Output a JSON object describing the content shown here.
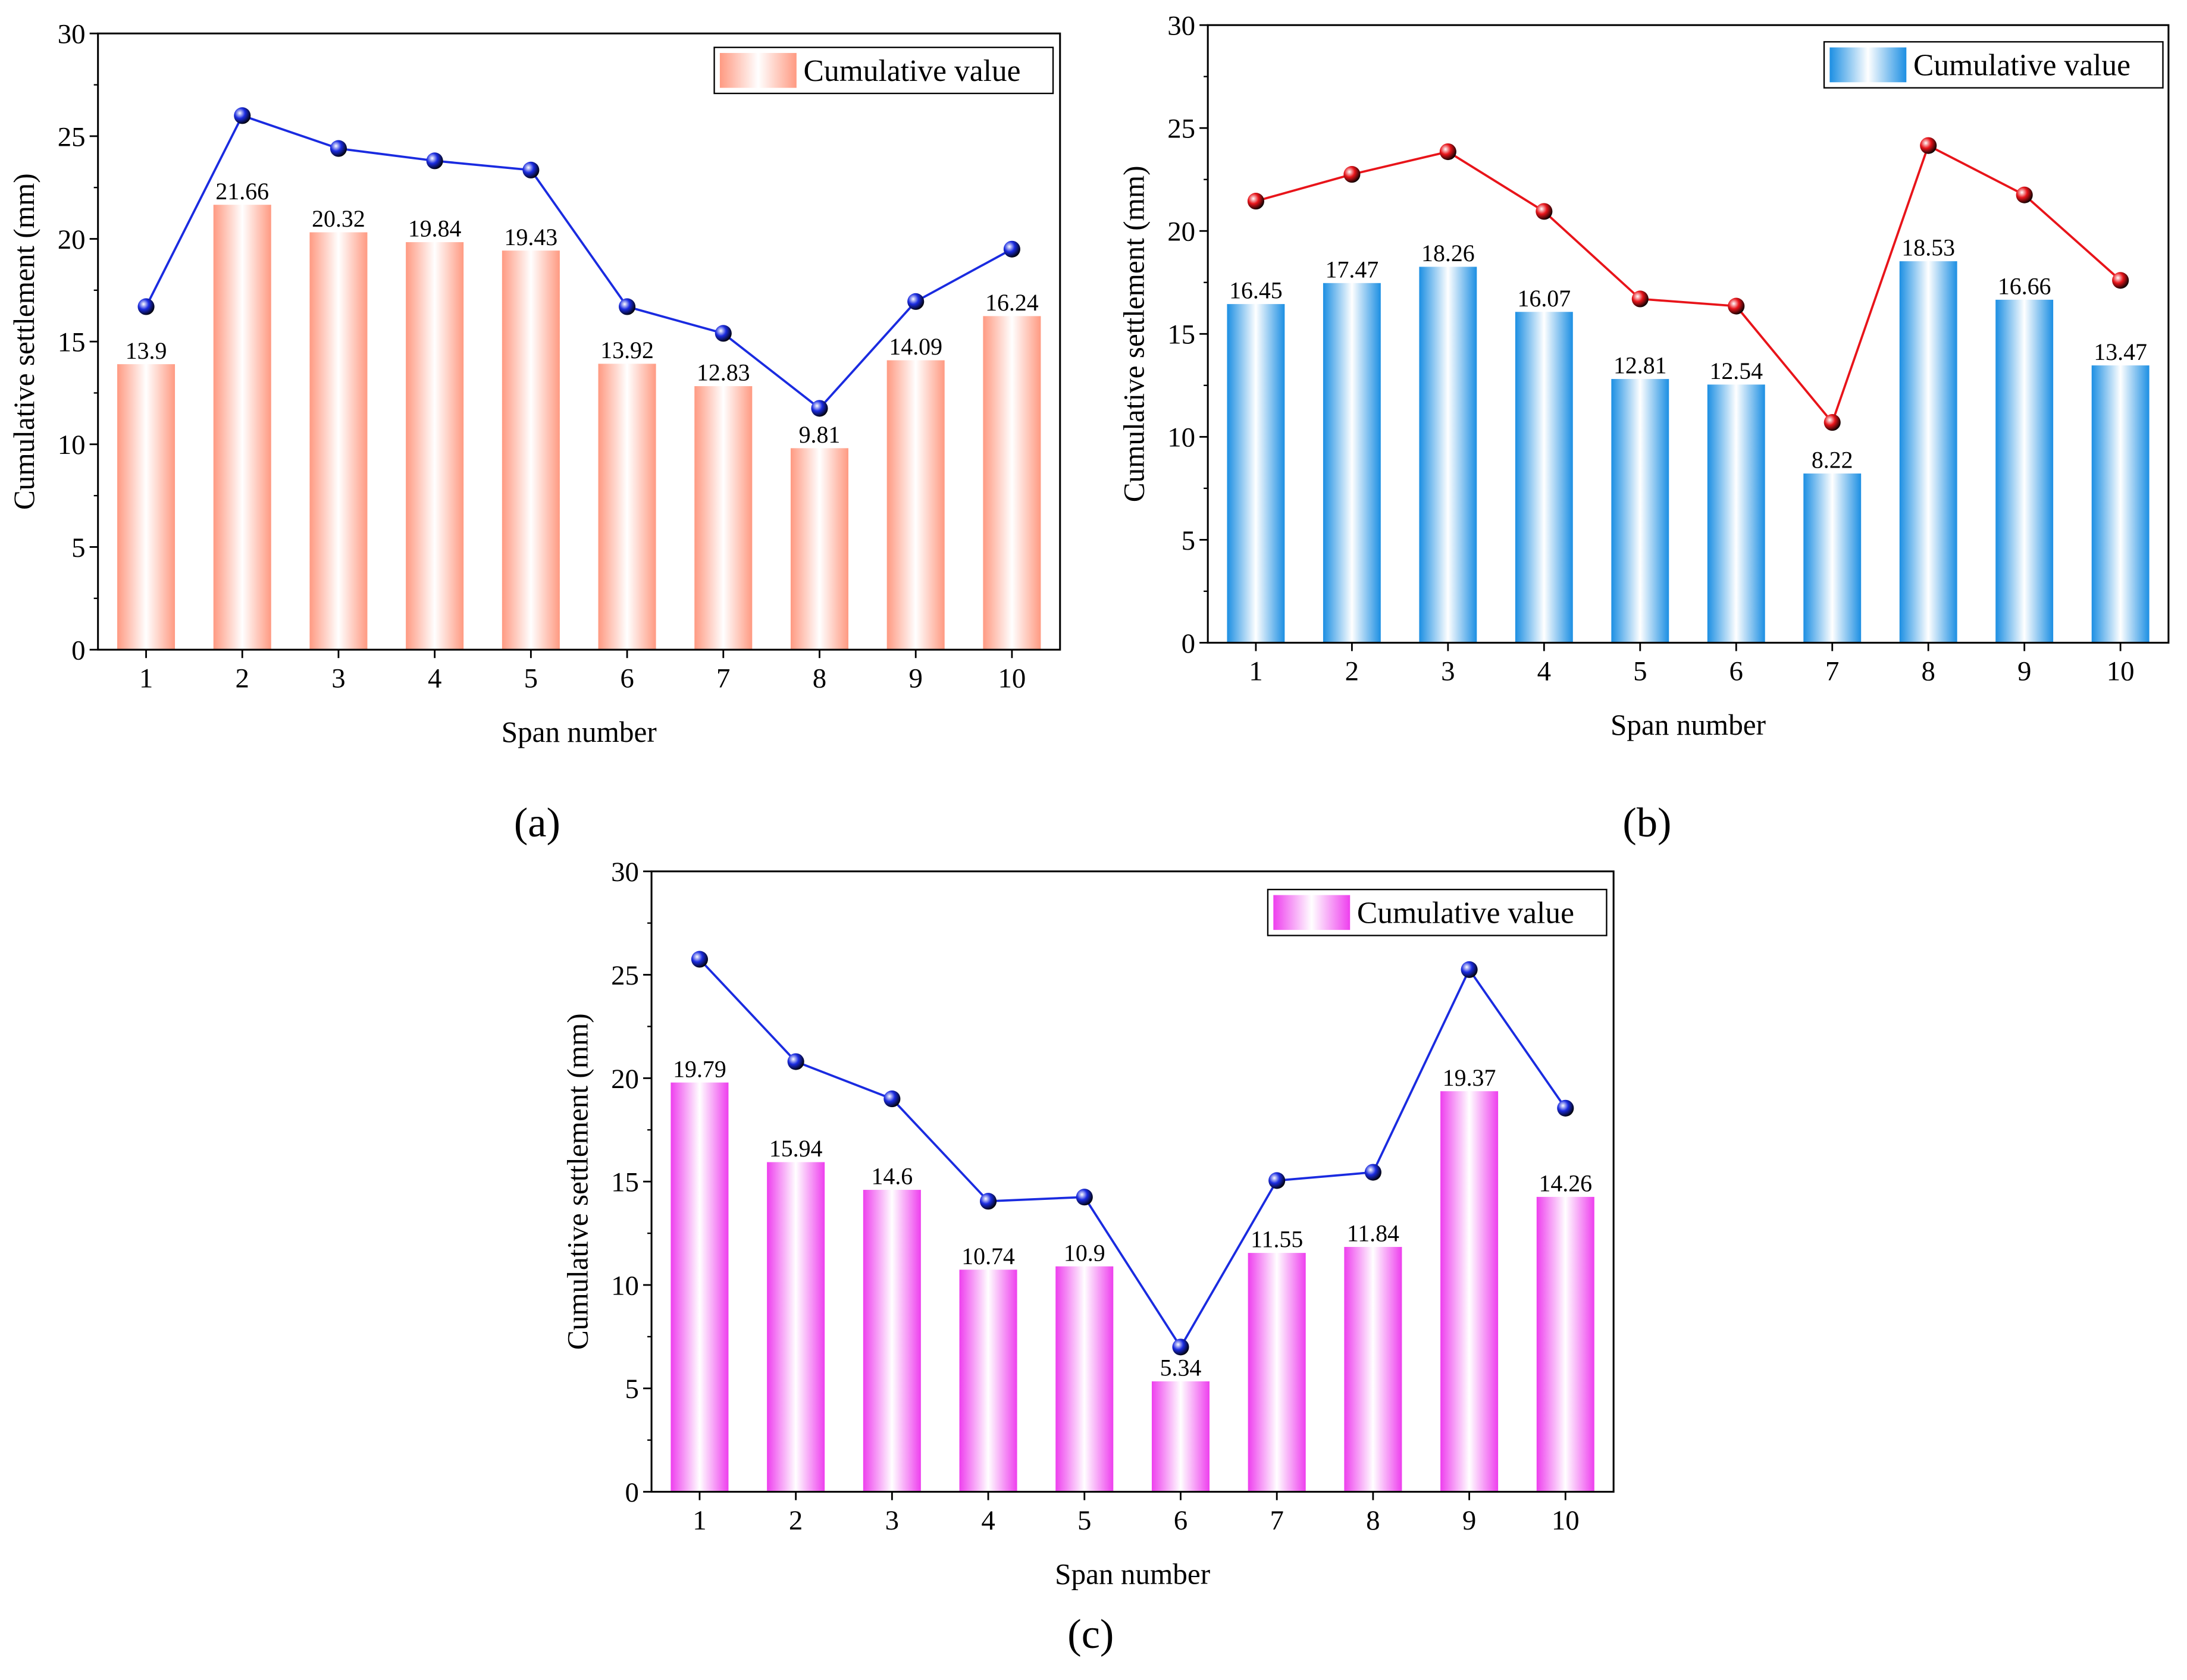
{
  "chart_data": [
    {
      "type": "bar+line",
      "panel_label": "(a)",
      "xlabel": "Span number",
      "ylabel": "Cumulative settlement (mm)",
      "ylim": [
        0,
        30
      ],
      "yticks": [
        "0",
        "5",
        "10",
        "15",
        "20",
        "25",
        "30"
      ],
      "categories": [
        "1",
        "2",
        "3",
        "4",
        "5",
        "6",
        "7",
        "8",
        "9",
        "10"
      ],
      "legend": {
        "label": "Cumulative value",
        "placement": "top-right"
      },
      "bar_color": "#FF9A82",
      "line_color": "#1A2BE0",
      "bar_values": [
        13.9,
        21.66,
        20.32,
        19.84,
        19.43,
        13.92,
        12.83,
        9.81,
        14.09,
        16.24
      ],
      "bar_labels": [
        "13.9",
        "21.66",
        "20.32",
        "19.84",
        "19.43",
        "13.92",
        "12.83",
        "9.81",
        "14.09",
        "16.24"
      ],
      "line_values": [
        16.7,
        26.0,
        24.4,
        23.8,
        23.35,
        16.7,
        15.4,
        11.75,
        16.95,
        19.5
      ]
    },
    {
      "type": "bar+line",
      "panel_label": "(b)",
      "xlabel": "Span number",
      "ylabel": "Cumulative settlement (mm)",
      "ylim": [
        0,
        30
      ],
      "yticks": [
        "0",
        "5",
        "10",
        "15",
        "20",
        "25",
        "30"
      ],
      "categories": [
        "1",
        "2",
        "3",
        "4",
        "5",
        "6",
        "7",
        "8",
        "9",
        "10"
      ],
      "legend": {
        "label": "Cumulative value",
        "placement": "top-right"
      },
      "bar_color": "#1C8FE3",
      "line_color": "#E8141A",
      "bar_values": [
        16.45,
        17.47,
        18.26,
        16.07,
        12.81,
        12.54,
        8.22,
        18.53,
        16.66,
        13.47
      ],
      "bar_labels": [
        "16.45",
        "17.47",
        "18.26",
        "16.07",
        "12.81",
        "12.54",
        "8.22",
        "18.53",
        "16.66",
        "13.47"
      ],
      "line_values": [
        21.45,
        22.75,
        23.85,
        20.95,
        16.7,
        16.35,
        10.7,
        24.15,
        21.75,
        17.6
      ]
    },
    {
      "type": "bar+line",
      "panel_label": "(c)",
      "xlabel": "Span number",
      "ylabel": "Cumulative settlement (mm)",
      "ylim": [
        0,
        30
      ],
      "yticks": [
        "0",
        "5",
        "10",
        "15",
        "20",
        "25",
        "30"
      ],
      "categories": [
        "1",
        "2",
        "3",
        "4",
        "5",
        "6",
        "7",
        "8",
        "9",
        "10"
      ],
      "legend": {
        "label": "Cumulative value",
        "placement": "top-right"
      },
      "bar_color": "#EE3FEE",
      "line_color": "#1A2BE0",
      "bar_values": [
        19.79,
        15.94,
        14.6,
        10.74,
        10.9,
        5.34,
        11.55,
        11.84,
        19.37,
        14.26
      ],
      "bar_labels": [
        "19.79",
        "15.94",
        "14.6",
        "10.74",
        "10.9",
        "5.34",
        "11.55",
        "11.84",
        "19.37",
        "14.26"
      ],
      "line_values": [
        25.75,
        20.8,
        19.0,
        14.05,
        14.25,
        7.0,
        15.05,
        15.45,
        25.25,
        18.55
      ]
    }
  ]
}
